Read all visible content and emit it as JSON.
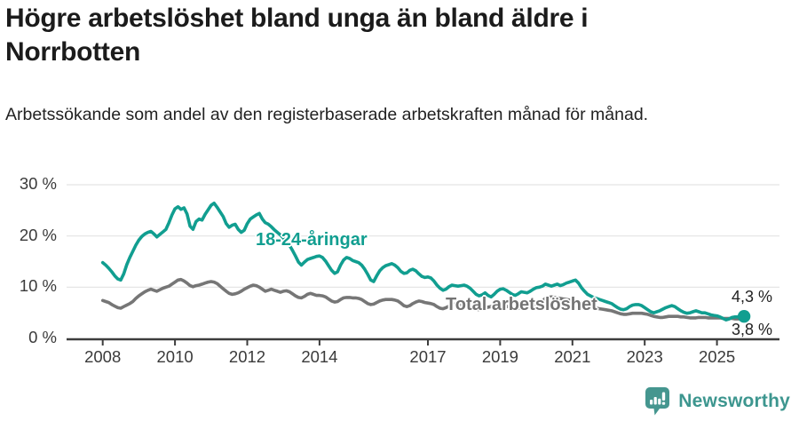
{
  "header": {
    "title": "Högre arbetslöshet bland unga än bland äldre i Norrbotten",
    "subtitle": "Arbetssökande som andel av den registerbaserade arbetskraften månad för månad."
  },
  "footer": {
    "brand": "Newsworthy",
    "logo_icon": "speech-bubble-bar-chart-exclamation",
    "brand_color": "#3d968f"
  },
  "colors": {
    "accent_teal": "#119e90",
    "line_gray": "#767676",
    "grid": "#e3e3e3",
    "axis": "#3d3d3d",
    "tick_text": "#3a3a3a"
  },
  "chart_data": {
    "type": "line",
    "title": "Högre arbetslöshet bland unga än bland äldre i Norrbotten",
    "subtitle": "Arbetssökande som andel av den registerbaserade arbetskraften månad för månad.",
    "x_unit": "month",
    "start_year": 2008,
    "end_point": "2025-10",
    "xlim": [
      2007.0,
      2026.73
    ],
    "ylim": [
      0,
      30
    ],
    "grid": true,
    "legend_position": "inline-labels",
    "x_ticks": [
      2008,
      2010,
      2012,
      2014,
      2017,
      2019,
      2021,
      2023,
      2025
    ],
    "y_ticks": [
      {
        "value": 30,
        "label": "30 %"
      },
      {
        "value": 20,
        "label": "20 %"
      },
      {
        "value": 10,
        "label": "10 %"
      },
      {
        "value": 0,
        "label": "0 %"
      }
    ],
    "series": [
      {
        "id": "youth",
        "name": "18-24-åringar",
        "color": "#119e90",
        "end_label": "4,3 %",
        "end_value": 4.3,
        "values": [
          14.8,
          14.3,
          13.7,
          13.0,
          12.2,
          11.6,
          11.4,
          12.6,
          14.4,
          15.8,
          17.0,
          18.2,
          19.2,
          19.9,
          20.4,
          20.7,
          20.9,
          20.4,
          19.8,
          20.3,
          20.8,
          21.3,
          22.6,
          24.1,
          25.3,
          25.7,
          25.2,
          25.5,
          24.3,
          21.9,
          21.3,
          22.8,
          23.3,
          23.1,
          24.2,
          25.1,
          26.0,
          26.4,
          25.6,
          24.7,
          23.8,
          22.4,
          21.7,
          22.1,
          22.3,
          21.3,
          20.7,
          21.1,
          22.4,
          23.3,
          23.7,
          24.1,
          24.4,
          23.3,
          22.6,
          22.3,
          21.8,
          21.2,
          20.7,
          20.2,
          19.6,
          19.0,
          18.2,
          17.2,
          16.1,
          14.9,
          14.3,
          14.9,
          15.4,
          15.6,
          15.8,
          16.0,
          16.1,
          15.8,
          15.1,
          14.2,
          13.3,
          12.7,
          13.0,
          14.3,
          15.3,
          15.8,
          15.6,
          15.2,
          15.0,
          14.8,
          14.3,
          13.5,
          12.5,
          11.4,
          11.1,
          12.2,
          13.2,
          13.8,
          14.2,
          14.4,
          14.6,
          14.3,
          13.8,
          13.1,
          12.7,
          12.8,
          13.3,
          13.5,
          13.2,
          12.6,
          12.1,
          11.9,
          12.0,
          11.8,
          11.2,
          10.4,
          9.8,
          9.4,
          9.6,
          10.1,
          10.4,
          10.3,
          10.2,
          10.3,
          10.4,
          10.2,
          9.8,
          9.2,
          8.6,
          8.3,
          8.5,
          8.9,
          8.4,
          8.1,
          8.6,
          9.2,
          9.6,
          9.7,
          9.4,
          9.0,
          8.6,
          8.4,
          8.7,
          9.1,
          9.0,
          8.9,
          9.2,
          9.6,
          9.9,
          10.0,
          10.2,
          10.6,
          10.4,
          10.2,
          10.4,
          10.6,
          10.3,
          10.5,
          10.8,
          11.0,
          11.2,
          11.4,
          10.8,
          9.9,
          9.2,
          8.6,
          8.3,
          8.0,
          7.8,
          7.6,
          7.4,
          7.2,
          7.0,
          6.8,
          6.4,
          6.0,
          5.7,
          5.6,
          5.8,
          6.2,
          6.5,
          6.6,
          6.6,
          6.4,
          6.0,
          5.6,
          5.2,
          5.0,
          5.2,
          5.4,
          5.7,
          6.0,
          6.2,
          6.4,
          6.2,
          5.8,
          5.4,
          5.1,
          4.9,
          5.0,
          5.2,
          5.4,
          5.2,
          5.0,
          5.0,
          4.8,
          4.6,
          4.5,
          4.4,
          4.2,
          3.9,
          3.6,
          3.8,
          4.1,
          4.2,
          4.2,
          4.3,
          4.3
        ]
      },
      {
        "id": "total",
        "name": "Total arbetslöshet",
        "color": "#767676",
        "end_label": "3,8 %",
        "end_value": 3.8,
        "values": [
          7.4,
          7.2,
          7.0,
          6.6,
          6.3,
          6.0,
          5.9,
          6.2,
          6.5,
          6.8,
          7.2,
          7.8,
          8.3,
          8.7,
          9.1,
          9.4,
          9.6,
          9.4,
          9.2,
          9.5,
          9.8,
          10.0,
          10.2,
          10.6,
          11.0,
          11.4,
          11.5,
          11.2,
          10.8,
          10.3,
          10.1,
          10.3,
          10.4,
          10.6,
          10.8,
          11.0,
          11.1,
          11.0,
          10.7,
          10.2,
          9.7,
          9.2,
          8.8,
          8.6,
          8.7,
          8.9,
          9.2,
          9.6,
          9.9,
          10.2,
          10.4,
          10.3,
          10.0,
          9.6,
          9.2,
          9.4,
          9.6,
          9.4,
          9.2,
          9.0,
          9.2,
          9.3,
          9.1,
          8.7,
          8.3,
          8.0,
          7.9,
          8.2,
          8.6,
          8.8,
          8.6,
          8.4,
          8.4,
          8.3,
          8.1,
          7.7,
          7.3,
          7.1,
          7.2,
          7.6,
          7.9,
          8.0,
          8.0,
          7.9,
          7.9,
          7.8,
          7.6,
          7.2,
          6.8,
          6.6,
          6.7,
          7.0,
          7.3,
          7.5,
          7.6,
          7.6,
          7.6,
          7.5,
          7.3,
          6.9,
          6.4,
          6.2,
          6.4,
          6.8,
          7.1,
          7.3,
          7.2,
          7.0,
          6.9,
          6.8,
          6.6,
          6.2,
          5.9,
          5.8,
          6.0,
          6.3,
          6.6,
          6.7,
          6.7,
          6.6,
          6.6,
          6.5,
          6.3,
          6.0,
          5.7,
          5.6,
          5.7,
          5.9,
          6.1,
          6.2,
          6.3,
          6.3,
          6.4,
          6.4,
          6.3,
          6.1,
          5.9,
          5.8,
          5.9,
          6.1,
          6.2,
          6.3,
          6.4,
          6.6,
          6.8,
          6.9,
          7.3,
          7.8,
          8.0,
          8.1,
          8.0,
          7.9,
          7.8,
          7.7,
          7.6,
          7.5,
          7.4,
          7.3,
          7.1,
          6.9,
          6.7,
          6.5,
          6.3,
          6.1,
          5.9,
          5.8,
          5.7,
          5.6,
          5.5,
          5.4,
          5.2,
          5.0,
          4.8,
          4.7,
          4.7,
          4.8,
          4.9,
          4.9,
          4.9,
          4.9,
          4.8,
          4.7,
          4.5,
          4.3,
          4.2,
          4.1,
          4.1,
          4.2,
          4.3,
          4.3,
          4.3,
          4.3,
          4.2,
          4.2,
          4.1,
          4.0,
          4.0,
          4.0,
          4.1,
          4.1,
          4.1,
          4.0,
          4.0,
          4.0,
          4.0,
          4.0,
          3.9,
          3.9,
          3.9,
          3.9,
          3.8,
          3.8,
          3.8,
          3.8
        ]
      }
    ]
  }
}
